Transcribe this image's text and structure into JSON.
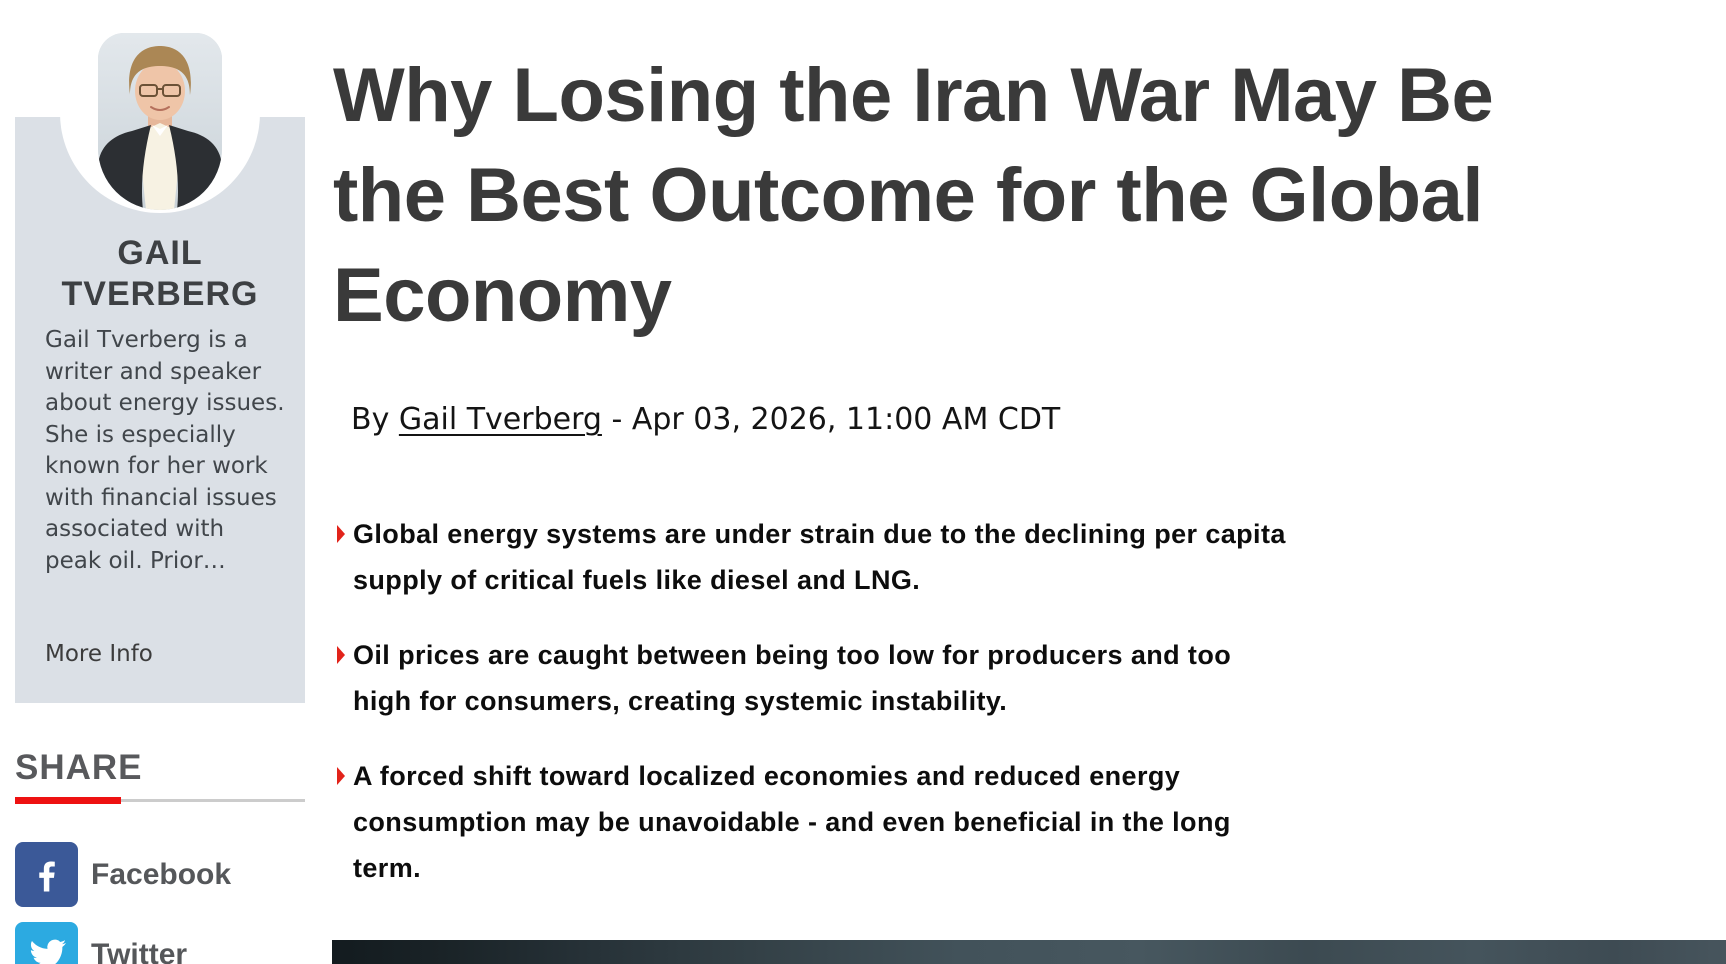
{
  "sidebar": {
    "author": {
      "name": "GAIL TVERBERG",
      "bio": "Gail Tverberg is a writer and speaker about energy issues. She is especially known for her work with financial issues associated with peak oil. Prior…",
      "more_info_label": "More Info"
    },
    "share": {
      "heading": "SHARE",
      "buttons": [
        {
          "network": "facebook",
          "label": "Facebook",
          "icon": "facebook-icon",
          "color": "#3b5998"
        },
        {
          "network": "twitter",
          "label": "Twitter",
          "icon": "twitter-icon",
          "color": "#2caae1"
        }
      ]
    }
  },
  "article": {
    "headline_lines": [
      "Why Losing the Iran War May Be",
      "the Best Outcome for the Global",
      "Economy"
    ],
    "byline": {
      "prefix": "By ",
      "author": "Gail Tverberg",
      "suffix": " - Apr 03, 2026, 11:00 AM CDT"
    },
    "bullets": [
      {
        "lines": [
          "Global energy systems are under strain due to the declining per capita",
          "supply of critical fuels like diesel and LNG."
        ]
      },
      {
        "lines": [
          "Oil prices are caught between being too low for producers and too",
          "high for consumers, creating systemic instability."
        ]
      },
      {
        "lines": [
          "A forced shift toward localized economies and reduced energy",
          "consumption may be unavoidable - and even beneficial in the long",
          "term."
        ]
      }
    ]
  },
  "colors": {
    "accent_red": "#ee1111",
    "triangle_red": "#e2231a",
    "facebook_blue": "#3b5998",
    "twitter_blue": "#2caae1",
    "sidebar_bg": "#dbe0e6",
    "headline_text": "#3a3a3a",
    "share_label_gray": "#55575a"
  }
}
